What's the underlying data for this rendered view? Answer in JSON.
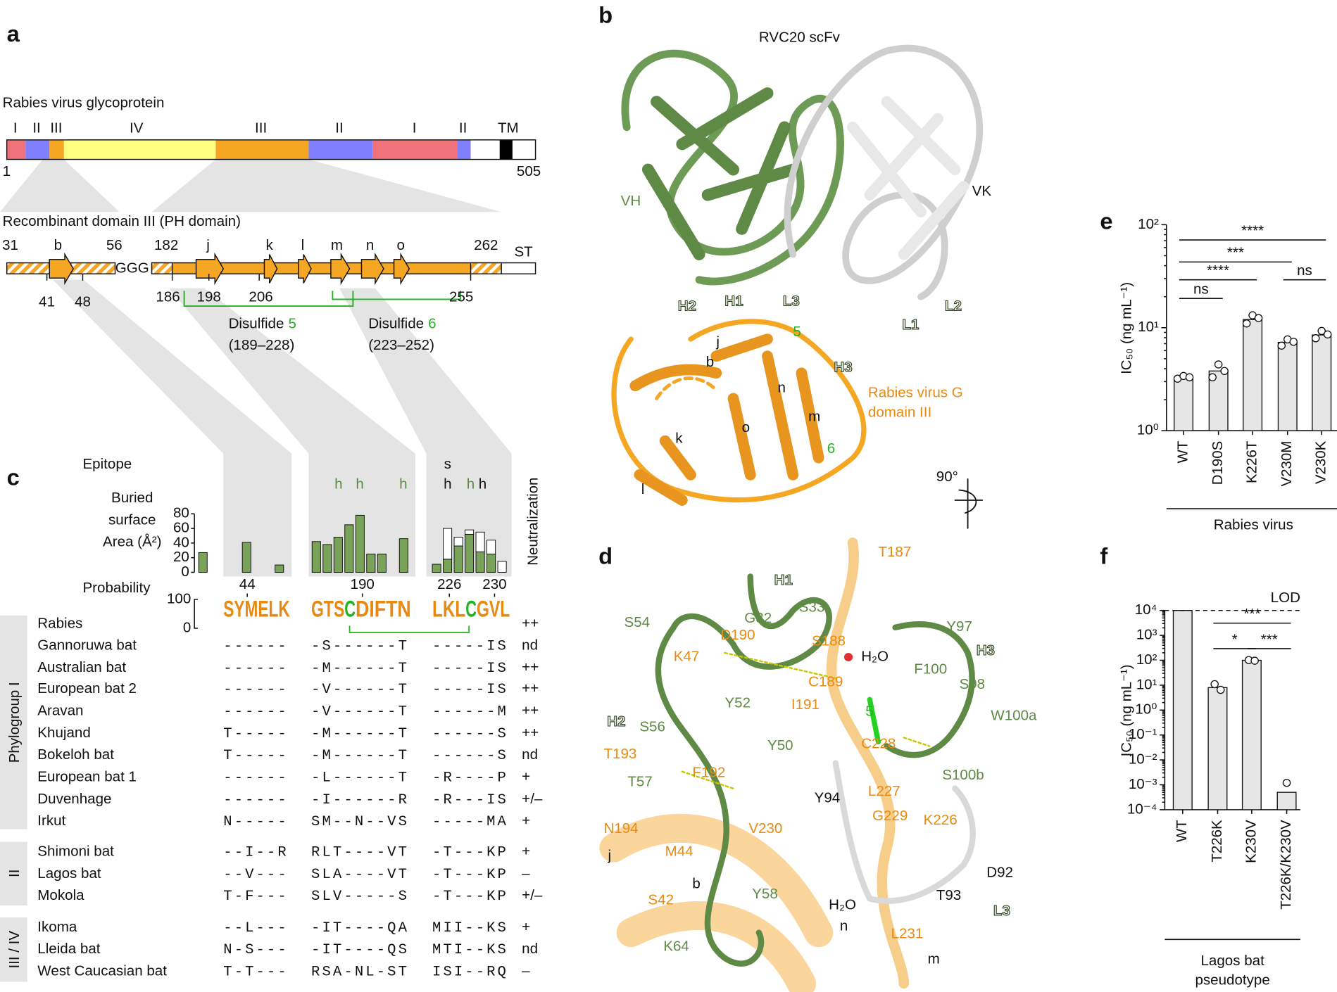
{
  "panel_a": {
    "letter": "a",
    "title": "Rabies virus glycoprotein",
    "domains": [
      "I",
      "II",
      "III",
      "IV",
      "III",
      "II",
      "I",
      "II",
      "TM"
    ],
    "start": "1",
    "end": "505",
    "construct_title": "Recombinant domain III (PH domain)",
    "top_labels": [
      "31",
      "b",
      "56",
      "182",
      "j",
      "k",
      "l",
      "m",
      "n",
      "o",
      "262",
      "ST"
    ],
    "linker": "GGG",
    "bottom_labels": [
      "41",
      "48",
      "186",
      "198",
      "206",
      "255"
    ],
    "disulfides": [
      {
        "name": "Disulfide",
        "number": "5",
        "range": "(189–228)"
      },
      {
        "name": "Disulfide",
        "number": "6",
        "range": "(223–252)"
      }
    ]
  },
  "panel_b": {
    "letter": "b",
    "labels": [
      "RVC20 scFv",
      "VH",
      "VK",
      "H2",
      "H1",
      "L3",
      "L1",
      "L2",
      "H3",
      "5",
      "j",
      "b",
      "n",
      "m",
      "o",
      "k",
      "l",
      "6",
      "Rabies virus G",
      "domain III",
      "90°"
    ]
  },
  "panel_c": {
    "letter": "c",
    "epitope_title": "Epitope",
    "epitope": [
      "h",
      "h",
      "h",
      "s",
      "h",
      "h",
      "h"
    ],
    "bsa_title": [
      "Buried",
      "surface",
      "Area (Å²)"
    ],
    "bsa_ticks": [
      0,
      20,
      40,
      60,
      80
    ],
    "bsa_groups": [
      {
        "green": [
          27,
          null,
          null,
          null,
          41,
          null,
          null,
          10
        ]
      },
      {
        "green": [
          42,
          38,
          48,
          65,
          78,
          25,
          25,
          null,
          46
        ]
      },
      {
        "green": [
          11,
          18,
          36,
          52,
          28,
          25,
          null
        ],
        "white": [
          null,
          42,
          12,
          6,
          27,
          19,
          15
        ]
      }
    ],
    "residues": [
      "44",
      "190",
      "226",
      "230"
    ],
    "neutralization_title": "Neutralization",
    "probability_title": "Probability",
    "probability_ticks": [
      "100",
      "0"
    ],
    "logo": [
      "SYMELK",
      "GTS",
      "C",
      "DIFTN",
      "LKL",
      "C",
      "GVL"
    ],
    "groups": [
      "Phylogroup I",
      "II",
      "III / IV"
    ],
    "rows": [
      {
        "name": "Rabies",
        "neutralization": "++"
      },
      {
        "name": "Gannoruwa bat",
        "s1": "------",
        "s2": "-S------T",
        "s3": "-----IS",
        "neutralization": "nd"
      },
      {
        "name": "Australian bat",
        "s1": "------",
        "s2": "-M------T",
        "s3": "-----IS",
        "neutralization": "++"
      },
      {
        "name": "European bat 2",
        "s1": "------",
        "s2": "-V------T",
        "s3": "-----IS",
        "neutralization": "++"
      },
      {
        "name": "Aravan",
        "s1": "------",
        "s2": "-V------T",
        "s3": "------M",
        "neutralization": "++"
      },
      {
        "name": "Khujand",
        "s1": "T-----",
        "s2": "-M------T",
        "s3": "------S",
        "neutralization": "++"
      },
      {
        "name": "Bokeloh bat",
        "s1": "T-----",
        "s2": "-M------T",
        "s3": "------S",
        "neutralization": "nd"
      },
      {
        "name": "European bat 1",
        "s1": "------",
        "s2": "-L------T",
        "s3": "-R----P",
        "neutralization": "+"
      },
      {
        "name": "Duvenhage",
        "s1": "------",
        "s2": "-I------R",
        "s3": "-R---IS",
        "neutralization": "+/–"
      },
      {
        "name": "Irkut",
        "s1": "N-----",
        "s2": "SM--N--VS",
        "s3": "-----MA",
        "neutralization": "+"
      },
      {
        "name": "Shimoni bat",
        "s1": "--I--R",
        "s2": "RLT----VT",
        "s3": "-T---KP",
        "neutralization": "+"
      },
      {
        "name": "Lagos bat",
        "s1": "--V---",
        "s2": "SLA----VT",
        "s3": "-T---KP",
        "neutralization": "–"
      },
      {
        "name": "Mokola",
        "s1": "T-F---",
        "s2": "SLV-----S",
        "s3": "-T---KP",
        "neutralization": "+/–"
      },
      {
        "name": "Ikoma",
        "s1": "--L---",
        "s2": "-IT----QA",
        "s3": "MII--KS",
        "neutralization": "+"
      },
      {
        "name": "Lleida bat",
        "s1": "N-S---",
        "s2": "-IT----QS",
        "s3": "MTI--KS",
        "neutralization": "nd"
      },
      {
        "name": "West Caucasian bat",
        "s1": "T-T---",
        "s2": "RSA-NL-ST",
        "s3": "ISI--RQ",
        "neutralization": "–"
      }
    ]
  },
  "panel_d": {
    "letter": "d",
    "labels": [
      "H1",
      "S33",
      "T187",
      "G32",
      "Y97",
      "S54",
      "D190",
      "S188",
      "H₂O",
      "H3",
      "K47",
      "C189",
      "F100",
      "S98",
      "H2",
      "Y52",
      "I191",
      "5",
      "W100a",
      "S56",
      "Y50",
      "C228",
      "T193",
      "F192",
      "S100b",
      "T57",
      "Y94",
      "L227",
      "N194",
      "V230",
      "G229",
      "K226",
      "j",
      "M44",
      "D92",
      "b",
      "S42",
      "T93",
      "H₂O",
      "L3",
      "Y58",
      "n",
      "L231",
      "K64",
      "m"
    ]
  },
  "chart_data": [
    {
      "type": "bar",
      "panel": "e",
      "categories": [
        "WT",
        "D190S",
        "K226T",
        "V230M",
        "V230K"
      ],
      "values": [
        3.3,
        3.8,
        12,
        7.2,
        8.5
      ],
      "points": [
        [
          3.2,
          3.4,
          3.3
        ],
        [
          3.3,
          4.4,
          3.8
        ],
        [
          11,
          13.2,
          12.4
        ],
        [
          6.7,
          7.7,
          7.3
        ],
        [
          7.9,
          9.3,
          8.6
        ]
      ],
      "ylabel": "IC₅₀ (ng mL⁻¹)",
      "log_scale": true,
      "ylim": [
        1,
        100
      ],
      "yticks": [
        {
          "value": 1,
          "label": "10⁰"
        },
        {
          "value": 10,
          "label": "10¹"
        },
        {
          "value": 100,
          "label": "10²"
        }
      ],
      "color": "#e6e6e6",
      "xlabel": "Rabies virus",
      "significance": [
        {
          "label": "****",
          "between": [
            "WT",
            "V230K"
          ]
        },
        {
          "label": "***",
          "between": [
            "WT",
            "V230M"
          ]
        },
        {
          "label": "****",
          "between": [
            "WT",
            "K226T"
          ]
        },
        {
          "label": "ns",
          "between": [
            "WT",
            "D190S"
          ]
        },
        {
          "label": "ns",
          "between": [
            "V230M",
            "V230K"
          ]
        }
      ]
    },
    {
      "type": "bar",
      "panel": "f",
      "categories": [
        "WT",
        "T226K",
        "K230V",
        "T226K/K230V"
      ],
      "values": [
        10000,
        8,
        100,
        0.0005
      ],
      "points": [
        null,
        [
          11,
          6.5
        ],
        [
          102,
          96
        ],
        [
          0.0012
        ]
      ],
      "ylabel": "IC₅₀ (ng mL⁻¹)",
      "log_scale": true,
      "ylim": [
        0.0001,
        10000
      ],
      "yticks": [
        {
          "value": 0.0001,
          "label": "10⁻⁴"
        },
        {
          "value": 0.001,
          "label": "10⁻³"
        },
        {
          "value": 0.01,
          "label": "10⁻²"
        },
        {
          "value": 0.1,
          "label": "10⁻¹"
        },
        {
          "value": 1,
          "label": "10⁰"
        },
        {
          "value": 10,
          "label": "10¹"
        },
        {
          "value": 100,
          "label": "10²"
        },
        {
          "value": 1000,
          "label": "10³"
        },
        {
          "value": 10000,
          "label": "10⁴"
        }
      ],
      "color": "#e6e6e6",
      "lod": {
        "label": "LOD",
        "value": 10000
      },
      "xlabel": [
        "Lagos bat",
        "pseudotype"
      ],
      "significance": [
        {
          "label": "***",
          "between": [
            "T226K",
            "T226K/K230V"
          ]
        },
        {
          "label": "*",
          "between": [
            "T226K",
            "K230V"
          ]
        },
        {
          "label": "***",
          "between": [
            "K230V",
            "T226K/K230V"
          ]
        }
      ]
    }
  ]
}
